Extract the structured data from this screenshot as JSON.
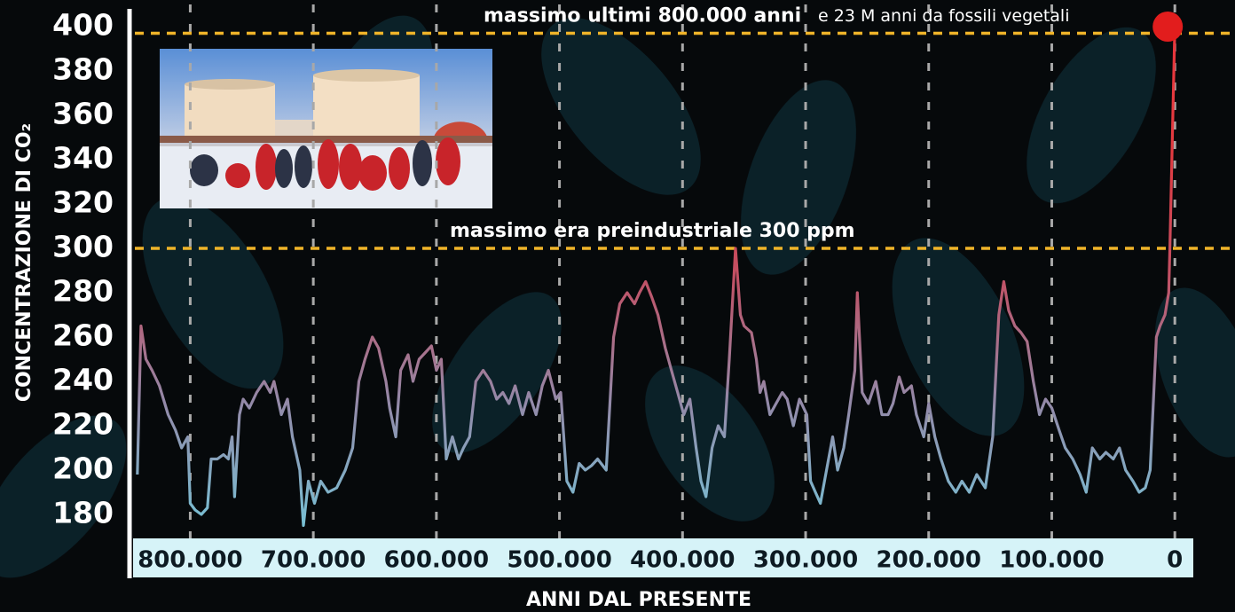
{
  "chart_data": {
    "type": "line",
    "y_label": "CONCENTRAZIONE DI CO₂",
    "x_label": "ANNI DAL PRESENTE",
    "xlim": [
      845000,
      -15000
    ],
    "xticks": [
      {
        "value": 800000,
        "label": "800.000"
      },
      {
        "value": 700000,
        "label": "700.000"
      },
      {
        "value": 600000,
        "label": "600.000"
      },
      {
        "value": 500000,
        "label": "500.000"
      },
      {
        "value": 400000,
        "label": "400.000"
      },
      {
        "value": 300000,
        "label": "300.000"
      },
      {
        "value": 200000,
        "label": "200.000"
      },
      {
        "value": 100000,
        "label": "100.000"
      },
      0
    ],
    "ylim": [
      170,
      410
    ],
    "yticks": [
      180,
      200,
      220,
      240,
      260,
      280,
      300,
      320,
      340,
      360,
      380,
      400
    ],
    "grid": true,
    "line_colors": [
      "#e8353b",
      "#e23a40",
      "#c25064",
      "#9489a8",
      "#78c0d4"
    ],
    "marker_color": "#e21d1d",
    "reference_color": "#f0b429",
    "reference_lines": [
      {
        "value": 397,
        "label": "massimo ultimi 800.000 anni",
        "note": "e 23 M anni da fossili vegetali"
      },
      {
        "value": 300,
        "label": "massimo era preindustriale 300 ppm"
      }
    ],
    "x": [
      843000,
      840000,
      836000,
      831000,
      825000,
      818000,
      812000,
      807000,
      802000,
      800000,
      796000,
      791000,
      786000,
      783000,
      778000,
      773000,
      769000,
      766000,
      764000,
      760000,
      757000,
      752000,
      746000,
      740000,
      735000,
      732000,
      726000,
      721000,
      717000,
      711000,
      708000,
      704000,
      699000,
      694000,
      688000,
      681000,
      674000,
      668000,
      663000,
      658000,
      652000,
      647000,
      641000,
      638000,
      633000,
      629000,
      623000,
      619000,
      614000,
      609000,
      604000,
      600000,
      596000,
      592000,
      587000,
      582000,
      578000,
      573000,
      568000,
      562000,
      556000,
      551000,
      546000,
      541000,
      536000,
      530000,
      525000,
      519000,
      514000,
      509000,
      503000,
      499000,
      494000,
      489000,
      484000,
      479000,
      474000,
      469000,
      462000,
      456000,
      451000,
      445000,
      439000,
      435000,
      430000,
      425000,
      420000,
      414000,
      409000,
      404000,
      399000,
      394000,
      389000,
      385000,
      381000,
      376000,
      371000,
      366000,
      362000,
      357000,
      353000,
      350000,
      344000,
      340000,
      337000,
      334000,
      329000,
      324000,
      319000,
      315000,
      310000,
      305000,
      299000,
      296000,
      292000,
      288000,
      283000,
      278000,
      274000,
      269000,
      265000,
      260000,
      258000,
      254000,
      249000,
      243000,
      238000,
      233000,
      229000,
      224000,
      220000,
      214000,
      210000,
      204000,
      200000,
      195000,
      190000,
      184000,
      178000,
      173000,
      167000,
      161000,
      154000,
      148000,
      143000,
      139000,
      135000,
      130000,
      125000,
      120000,
      115000,
      110000,
      105000,
      100000,
      94000,
      89000,
      83000,
      77000,
      72000,
      67000,
      61000,
      56000,
      50000,
      45000,
      40000,
      34000,
      29000,
      24000,
      20000,
      15000,
      12000,
      8000,
      5000,
      4000,
      0
    ],
    "values": [
      198,
      265,
      250,
      245,
      238,
      225,
      218,
      210,
      215,
      185,
      182,
      180,
      183,
      205,
      205,
      207,
      205,
      215,
      188,
      225,
      232,
      228,
      235,
      240,
      235,
      240,
      225,
      232,
      215,
      200,
      175,
      195,
      185,
      195,
      190,
      192,
      200,
      210,
      240,
      250,
      260,
      255,
      240,
      228,
      215,
      245,
      252,
      240,
      250,
      253,
      256,
      245,
      250,
      205,
      215,
      205,
      210,
      215,
      240,
      245,
      240,
      232,
      235,
      230,
      238,
      225,
      235,
      225,
      238,
      245,
      232,
      235,
      195,
      190,
      203,
      200,
      202,
      205,
      200,
      260,
      275,
      280,
      275,
      280,
      285,
      278,
      270,
      255,
      245,
      235,
      225,
      232,
      210,
      195,
      188,
      210,
      220,
      215,
      250,
      300,
      270,
      265,
      262,
      250,
      235,
      240,
      225,
      230,
      235,
      232,
      220,
      232,
      225,
      195,
      190,
      185,
      200,
      215,
      200,
      210,
      225,
      245,
      280,
      235,
      230,
      240,
      225,
      225,
      230,
      242,
      235,
      238,
      225,
      215,
      230,
      215,
      205,
      195,
      190,
      195,
      190,
      198,
      192,
      215,
      270,
      285,
      272,
      265,
      262,
      258,
      240,
      225,
      232,
      228,
      218,
      210,
      205,
      198,
      190,
      210,
      205,
      208,
      205,
      210,
      200,
      195,
      190,
      192,
      200,
      260,
      265,
      270,
      280,
      300,
      400
    ]
  }
}
